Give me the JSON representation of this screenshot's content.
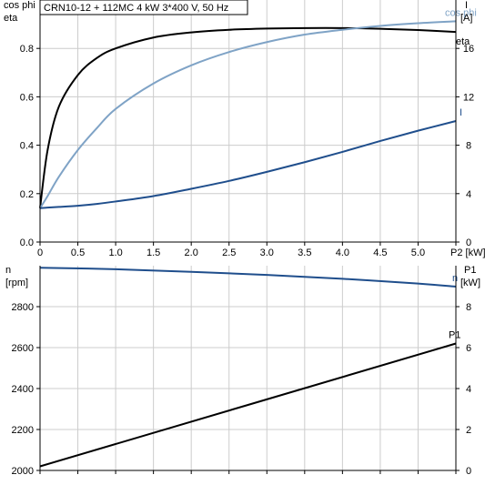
{
  "header": {
    "title": "CRN10-12 + 112MC   4 kW   3*400 V, 50 Hz"
  },
  "colors": {
    "black": "#000000",
    "dark_blue": "#1f4e8c",
    "light_blue": "#7fa3c6",
    "grid": "#cccccc",
    "axis": "#000000"
  },
  "chart_data": [
    {
      "type": "line",
      "title": "CRN10-12 + 112MC   4 kW   3*400 V, 50 Hz",
      "x": [
        0,
        0.1,
        0.25,
        0.5,
        0.75,
        1.0,
        1.5,
        2.0,
        2.5,
        3.0,
        3.5,
        4.0,
        4.5,
        5.0,
        5.5
      ],
      "xlabel": "P2 [kW]",
      "xlim": [
        0,
        5.5
      ],
      "xticks": [
        "0",
        "0.5",
        "1.0",
        "1.5",
        "2.0",
        "2.5",
        "3.0",
        "3.5",
        "4.0",
        "4.5",
        "5.0",
        "P2 [kW]"
      ],
      "left_axis": {
        "label_line1": "cos phi",
        "label_line2": "eta",
        "ylim": [
          0,
          1.0
        ],
        "ticks": [
          "0.0",
          "0.2",
          "0.4",
          "0.6",
          "0.8"
        ]
      },
      "right_axis": {
        "label_line1": "I",
        "label_line2": "[A]",
        "ylim": [
          0,
          20
        ],
        "ticks": [
          "0",
          "4",
          "8",
          "12",
          "16"
        ]
      },
      "grid": true,
      "series": [
        {
          "name": "eta",
          "axis": "left",
          "color": "#000000",
          "values": [
            0.14,
            0.38,
            0.56,
            0.69,
            0.76,
            0.8,
            0.845,
            0.866,
            0.877,
            0.882,
            0.884,
            0.884,
            0.881,
            0.876,
            0.868
          ]
        },
        {
          "name": "cos phi",
          "axis": "left",
          "color": "#7fa3c6",
          "values": [
            0.14,
            0.19,
            0.27,
            0.38,
            0.47,
            0.55,
            0.655,
            0.73,
            0.785,
            0.826,
            0.857,
            0.877,
            0.893,
            0.904,
            0.912
          ]
        },
        {
          "name": "I",
          "axis": "right",
          "color": "#1f4e8c",
          "values": [
            2.8,
            2.85,
            2.9,
            3.0,
            3.15,
            3.35,
            3.8,
            4.4,
            5.05,
            5.8,
            6.6,
            7.45,
            8.35,
            9.2,
            10.0
          ]
        }
      ]
    },
    {
      "type": "line",
      "x": [
        0,
        5.5
      ],
      "xlim": [
        0,
        5.5
      ],
      "left_axis": {
        "label_line1": "n",
        "label_line2": "[rpm]",
        "ylim": [
          2000,
          3000
        ],
        "ticks": [
          "2000",
          "2200",
          "2400",
          "2600",
          "2800"
        ]
      },
      "right_axis": {
        "label_line1": "P1",
        "label_line2": "[kW]",
        "ylim": [
          0,
          10
        ],
        "ticks": [
          "0",
          "2",
          "4",
          "6",
          "8"
        ]
      },
      "grid": true,
      "series": [
        {
          "name": "n",
          "axis": "left",
          "color": "#1f4e8c",
          "x": [
            0,
            1.0,
            2.0,
            3.0,
            4.0,
            5.0,
            5.5
          ],
          "values": [
            2990,
            2983,
            2970,
            2955,
            2936,
            2913,
            2898
          ]
        },
        {
          "name": "P1",
          "axis": "right",
          "color": "#000000",
          "x": [
            0,
            5.5
          ],
          "values": [
            0.2,
            6.2
          ]
        }
      ]
    }
  ]
}
